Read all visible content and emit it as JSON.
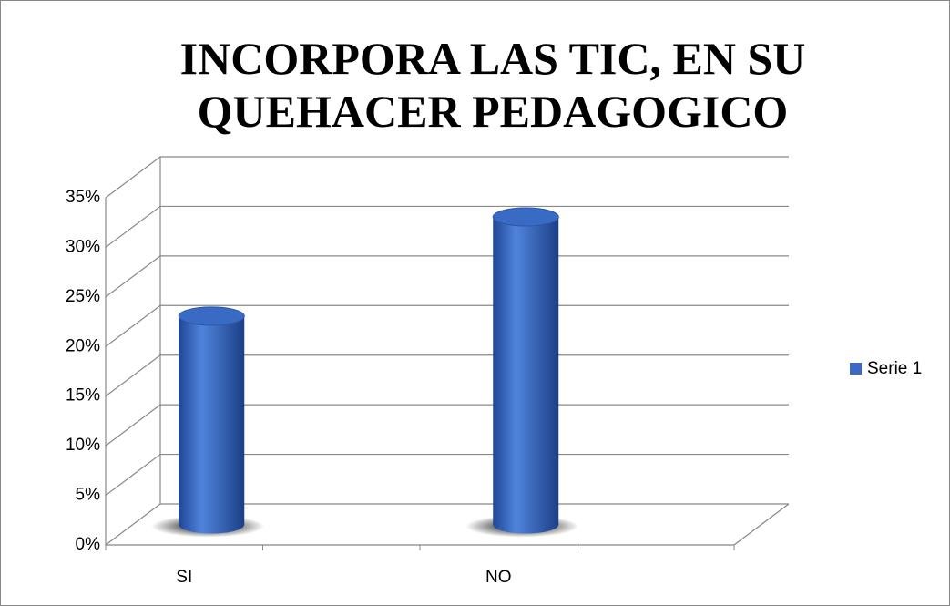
{
  "chart_data": {
    "type": "bar3d",
    "title": "INCORPORA LAS TIC, EN SU QUEHACER PEDAGOGICO",
    "categories": [
      "SI",
      null,
      "NO",
      null
    ],
    "series": [
      {
        "name": "Serie 1",
        "color": "#3a6bc4",
        "values": [
          21,
          null,
          31,
          null
        ]
      }
    ],
    "ylim": [
      0,
      35
    ],
    "yticks": [
      {
        "value": 0,
        "label": "0%"
      },
      {
        "value": 5,
        "label": "5%"
      },
      {
        "value": 10,
        "label": "10%"
      },
      {
        "value": 15,
        "label": "15%"
      },
      {
        "value": 20,
        "label": "20%"
      },
      {
        "value": 25,
        "label": "25%"
      },
      {
        "value": 30,
        "label": "30%"
      },
      {
        "value": 35,
        "label": "35%"
      }
    ],
    "grid": true,
    "legend": "right"
  }
}
